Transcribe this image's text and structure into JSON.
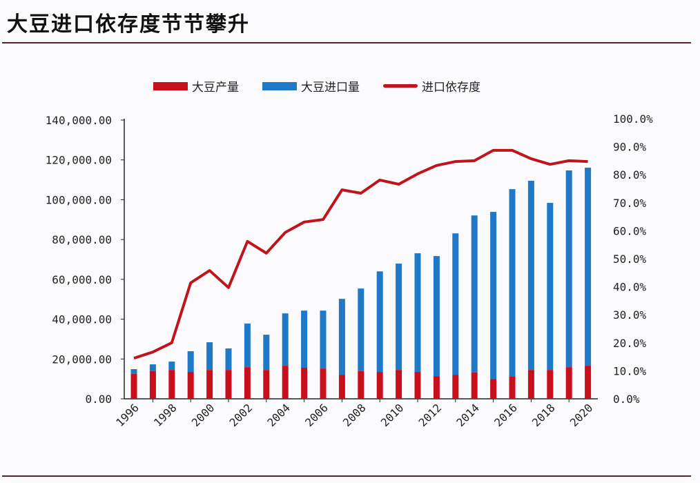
{
  "title": "大豆进口依存度节节攀升",
  "colors": {
    "production": "#c8101c",
    "import": "#1f78c8",
    "dependence": "#c0141c",
    "rule": "#5a2030"
  },
  "chart_data": {
    "type": "bar",
    "stacked": true,
    "grid": false,
    "legend_position": "top",
    "categories": [
      "1996",
      "1997",
      "1998",
      "1999",
      "2000",
      "2001",
      "2002",
      "2003",
      "2004",
      "2005",
      "2006",
      "2007",
      "2008",
      "2009",
      "2010",
      "2011",
      "2012",
      "2013",
      "2014",
      "2015",
      "2016",
      "2017",
      "2018",
      "2019",
      "2020"
    ],
    "x_tick_labels": [
      "1996",
      "1998",
      "2000",
      "2002",
      "2004",
      "2006",
      "2008",
      "2010",
      "2012",
      "2014",
      "2016",
      "2018",
      "2020"
    ],
    "y_left": {
      "lim": [
        0,
        140000
      ],
      "ticks": [
        "0.00",
        "20,000.00",
        "40,000.00",
        "60,000.00",
        "80,000.00",
        "100,000.00",
        "120,000.00",
        "140,000.00"
      ]
    },
    "y_right": {
      "lim": [
        0,
        100
      ],
      "ticks": [
        "0.0%",
        "10.0%",
        "20.0%",
        "30.0%",
        "40.0%",
        "50.0%",
        "60.0%",
        "70.0%",
        "80.0%",
        "90.0%",
        "100.0%"
      ]
    },
    "series": [
      {
        "name": "大豆产量",
        "type": "bar",
        "axis": "left",
        "values": [
          12500,
          13900,
          14500,
          13500,
          14500,
          14500,
          15900,
          14500,
          16600,
          15600,
          15200,
          12100,
          13900,
          13500,
          14500,
          13500,
          11400,
          12100,
          13200,
          10000,
          11100,
          14500,
          14500,
          15900,
          16600
        ]
      },
      {
        "name": "大豆进口量",
        "type": "bar",
        "axis": "left",
        "values": [
          2400,
          3400,
          4200,
          10400,
          13900,
          10800,
          21900,
          17700,
          26300,
          28700,
          29100,
          38100,
          41500,
          50500,
          53400,
          59600,
          60300,
          71000,
          78900,
          83900,
          94200,
          95000,
          83900,
          98800,
          99500
        ]
      },
      {
        "name": "进口依存度",
        "type": "line",
        "axis": "right",
        "values": [
          14.5,
          16.7,
          20.0,
          41.4,
          45.8,
          39.7,
          56.2,
          52.0,
          59.4,
          63.1,
          64.0,
          74.6,
          73.4,
          78.1,
          76.6,
          80.3,
          83.3,
          84.7,
          85.0,
          88.7,
          88.7,
          85.7,
          83.7,
          85.0,
          84.7
        ]
      }
    ]
  }
}
